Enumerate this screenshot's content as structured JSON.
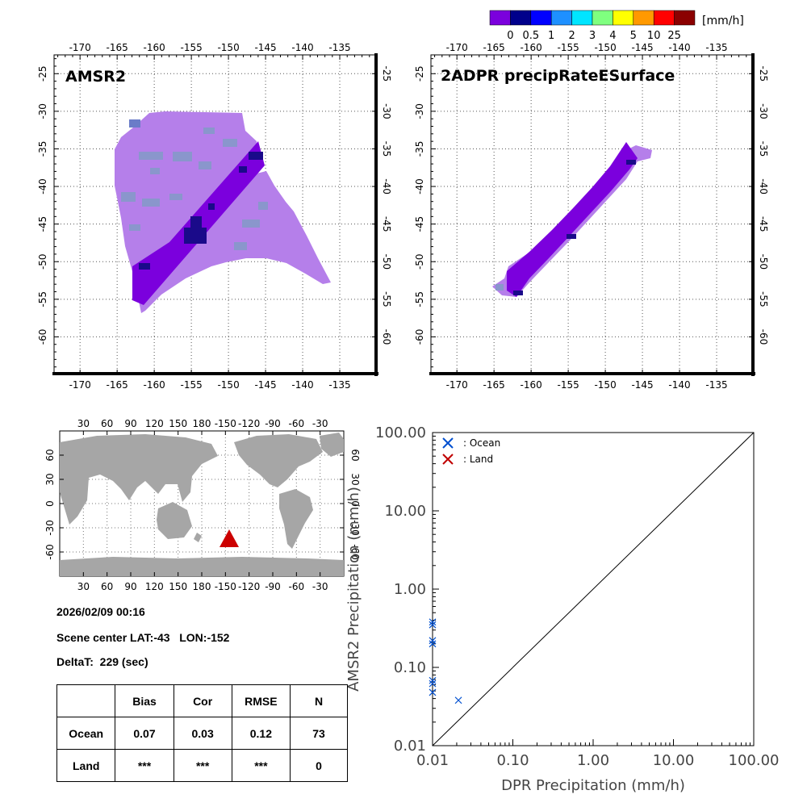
{
  "colorbar": {
    "unit_label": "[mm/h]",
    "colors": [
      "#7B00DD",
      "#00008B",
      "#0000FF",
      "#1E90FF",
      "#00E5FF",
      "#7FFF7F",
      "#FFFF00",
      "#FF9900",
      "#FF0000",
      "#8B0000"
    ],
    "tick_labels": [
      "0",
      "0.5",
      "1",
      "2",
      "3",
      "4",
      "5",
      "10",
      "25"
    ]
  },
  "map_panels": [
    {
      "title": "AMSR2",
      "lon_ticks": [
        "-170",
        "-165",
        "-160",
        "-155",
        "-150",
        "-145",
        "-140",
        "-135"
      ],
      "lat_ticks": [
        "-25",
        "-30",
        "-35",
        "-40",
        "-45",
        "-50",
        "-55",
        "-60"
      ]
    },
    {
      "title": "2ADPR precipRateESurface",
      "lon_ticks": [
        "-170",
        "-165",
        "-160",
        "-155",
        "-150",
        "-145",
        "-140",
        "-135"
      ],
      "lat_ticks": [
        "-25",
        "-30",
        "-35",
        "-40",
        "-45",
        "-50",
        "-55",
        "-60"
      ]
    }
  ],
  "world_map": {
    "lon_ticks": [
      "30",
      "60",
      "90",
      "120",
      "150",
      "180",
      "-150",
      "-120",
      "-90",
      "-60",
      "-30"
    ],
    "lat_ticks": [
      "60",
      "30",
      "0",
      "-30",
      "-60"
    ],
    "marker_color": "#CC0000",
    "land_color": "#A6A6A6"
  },
  "info": {
    "datetime": "2026/02/09 00:16",
    "scene_center": "Scene center LAT:-43   LON:-152",
    "delta_t": "DeltaT:  229 (sec)"
  },
  "stats_table": {
    "headers": [
      "",
      "Bias",
      "Cor",
      "RMSE",
      "N"
    ],
    "rows": [
      [
        "Ocean",
        "0.07",
        "0.03",
        "0.12",
        "73"
      ],
      [
        "Land",
        "***",
        "***",
        "***",
        "0"
      ]
    ]
  },
  "chart_data": {
    "type": "scatter",
    "xlabel": "DPR Precipitation (mm/h)",
    "ylabel": "AMSR2 Precipitation (mm/h)",
    "x_scale": "log",
    "y_scale": "log",
    "xlim": [
      0.01,
      100
    ],
    "ylim": [
      0.01,
      100
    ],
    "x_tick_labels": [
      "0.01",
      "0.10",
      "1.00",
      "10.00",
      "100.00"
    ],
    "y_tick_labels": [
      "0.01",
      "0.10",
      "1.00",
      "10.00",
      "100.00"
    ],
    "reference_line": "1:1",
    "legend_position": "top-left",
    "series": [
      {
        "name": ": Ocean",
        "color": "#0050D0",
        "marker": "x",
        "points": [
          [
            0.01,
            0.38
          ],
          [
            0.01,
            0.35
          ],
          [
            0.01,
            0.22
          ],
          [
            0.01,
            0.2
          ],
          [
            0.01,
            0.068
          ],
          [
            0.01,
            0.062
          ],
          [
            0.01,
            0.048
          ],
          [
            0.021,
            0.038
          ]
        ]
      },
      {
        "name": ": Land",
        "color": "#C00000",
        "marker": "x",
        "points": []
      }
    ]
  }
}
